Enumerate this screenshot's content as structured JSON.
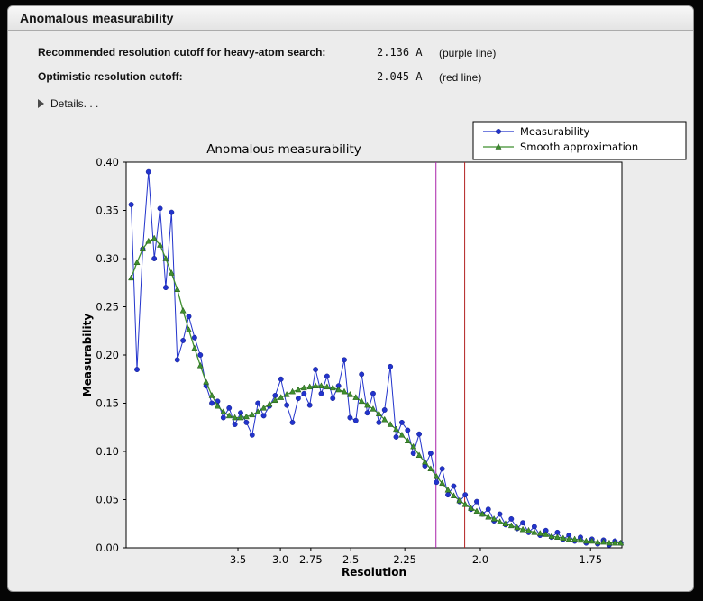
{
  "window": {
    "title": "Anomalous measurability"
  },
  "info": {
    "rows": [
      {
        "label": "Recommended resolution cutoff for heavy-atom search:",
        "value": "2.136 A",
        "note": "(purple line)"
      },
      {
        "label": "Optimistic resolution cutoff:",
        "value": "2.045 A",
        "note": "(red line)"
      }
    ],
    "details": "Details. . ."
  },
  "chart_data": {
    "type": "line",
    "title": "Anomalous measurability",
    "xlabel": "Resolution",
    "ylabel": "Measurability",
    "x_axis": {
      "scale": "1/d^2",
      "tick_labels": [
        "3.5",
        "3.0",
        "2.75",
        "2.5",
        "2.25",
        "2.0",
        "1.75"
      ],
      "range_inv_d2": [
        0.00399,
        0.3483
      ]
    },
    "y_axis": {
      "min": 0.0,
      "max": 0.4,
      "tick_step": 0.05
    },
    "vlines": [
      {
        "name": "recommended cutoff",
        "resolution": 2.136,
        "color": "#aa22aa"
      },
      {
        "name": "optimistic cutoff",
        "resolution": 2.045,
        "color": "#b22222"
      }
    ],
    "x_inv_d2": {
      "start": 0.0075,
      "step": 0.004,
      "count": 86
    },
    "series": [
      {
        "name": "Measurability",
        "color": "#2233cc",
        "marker": "circle",
        "values": [
          0.356,
          0.185,
          0.31,
          0.39,
          0.3,
          0.352,
          0.27,
          0.348,
          0.195,
          0.215,
          0.24,
          0.218,
          0.2,
          0.168,
          0.15,
          0.152,
          0.135,
          0.145,
          0.128,
          0.14,
          0.13,
          0.117,
          0.15,
          0.137,
          0.147,
          0.158,
          0.175,
          0.148,
          0.13,
          0.155,
          0.16,
          0.148,
          0.185,
          0.16,
          0.178,
          0.155,
          0.168,
          0.195,
          0.135,
          0.132,
          0.18,
          0.14,
          0.16,
          0.13,
          0.143,
          0.188,
          0.115,
          0.13,
          0.122,
          0.098,
          0.118,
          0.085,
          0.098,
          0.068,
          0.082,
          0.055,
          0.064,
          0.048,
          0.055,
          0.04,
          0.048,
          0.035,
          0.04,
          0.028,
          0.035,
          0.024,
          0.03,
          0.02,
          0.026,
          0.016,
          0.022,
          0.013,
          0.018,
          0.011,
          0.016,
          0.009,
          0.013,
          0.007,
          0.011,
          0.005,
          0.009,
          0.004,
          0.008,
          0.003,
          0.007,
          0.005
        ]
      },
      {
        "name": "Smooth approximation",
        "color": "#3f8f2f",
        "marker": "triangle",
        "values": [
          0.28,
          0.296,
          0.31,
          0.318,
          0.321,
          0.314,
          0.3,
          0.285,
          0.268,
          0.246,
          0.226,
          0.207,
          0.189,
          0.172,
          0.158,
          0.147,
          0.141,
          0.137,
          0.135,
          0.135,
          0.136,
          0.138,
          0.141,
          0.145,
          0.149,
          0.153,
          0.156,
          0.159,
          0.162,
          0.164,
          0.166,
          0.167,
          0.168,
          0.168,
          0.167,
          0.166,
          0.164,
          0.162,
          0.159,
          0.156,
          0.152,
          0.148,
          0.144,
          0.139,
          0.133,
          0.128,
          0.123,
          0.117,
          0.111,
          0.105,
          0.096,
          0.089,
          0.082,
          0.074,
          0.067,
          0.06,
          0.054,
          0.049,
          0.045,
          0.041,
          0.038,
          0.035,
          0.032,
          0.03,
          0.027,
          0.025,
          0.023,
          0.021,
          0.019,
          0.018,
          0.016,
          0.015,
          0.014,
          0.012,
          0.011,
          0.01,
          0.009,
          0.009,
          0.008,
          0.007,
          0.007,
          0.006,
          0.006,
          0.005,
          0.005,
          0.005
        ]
      }
    ],
    "legend": {
      "position": "top-right",
      "entries": [
        "Measurability",
        "Smooth approximation"
      ]
    }
  },
  "colors": {
    "panel_bg": "#ececec",
    "axes_bg": "#ffffff",
    "frame": "#000000"
  }
}
